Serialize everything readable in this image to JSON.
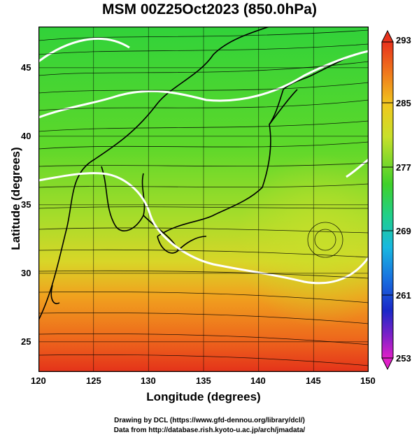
{
  "map": {
    "title": "MSM 00Z25Oct2023 (850.0hPa)",
    "xlabel": "Longitude (degrees)",
    "ylabel": "Latitude  (degrees)",
    "x_ticks": [
      "120",
      "125",
      "130",
      "135",
      "140",
      "145",
      "150"
    ],
    "y_ticks": [
      "25",
      "30",
      "35",
      "40",
      "45"
    ],
    "lon_range": [
      120,
      150
    ],
    "lat_range": [
      22.4,
      47.6
    ],
    "colorbar_labels": [
      "293",
      "285",
      "277",
      "269",
      "261",
      "253"
    ],
    "colorbar_range": [
      253,
      293
    ],
    "credit_line1": "Drawing by DCL (https://www.gfd-dennou.org/library/dcl/)",
    "credit_line2": "Data from http://database.rish.kyoto-u.ac.jp/arch/jmadata/"
  },
  "colors": {
    "green": "#3fd12a",
    "yellow": "#c8de2a",
    "orange": "#f08a1e",
    "red": "#e8321c",
    "contour": "#ffffff"
  }
}
